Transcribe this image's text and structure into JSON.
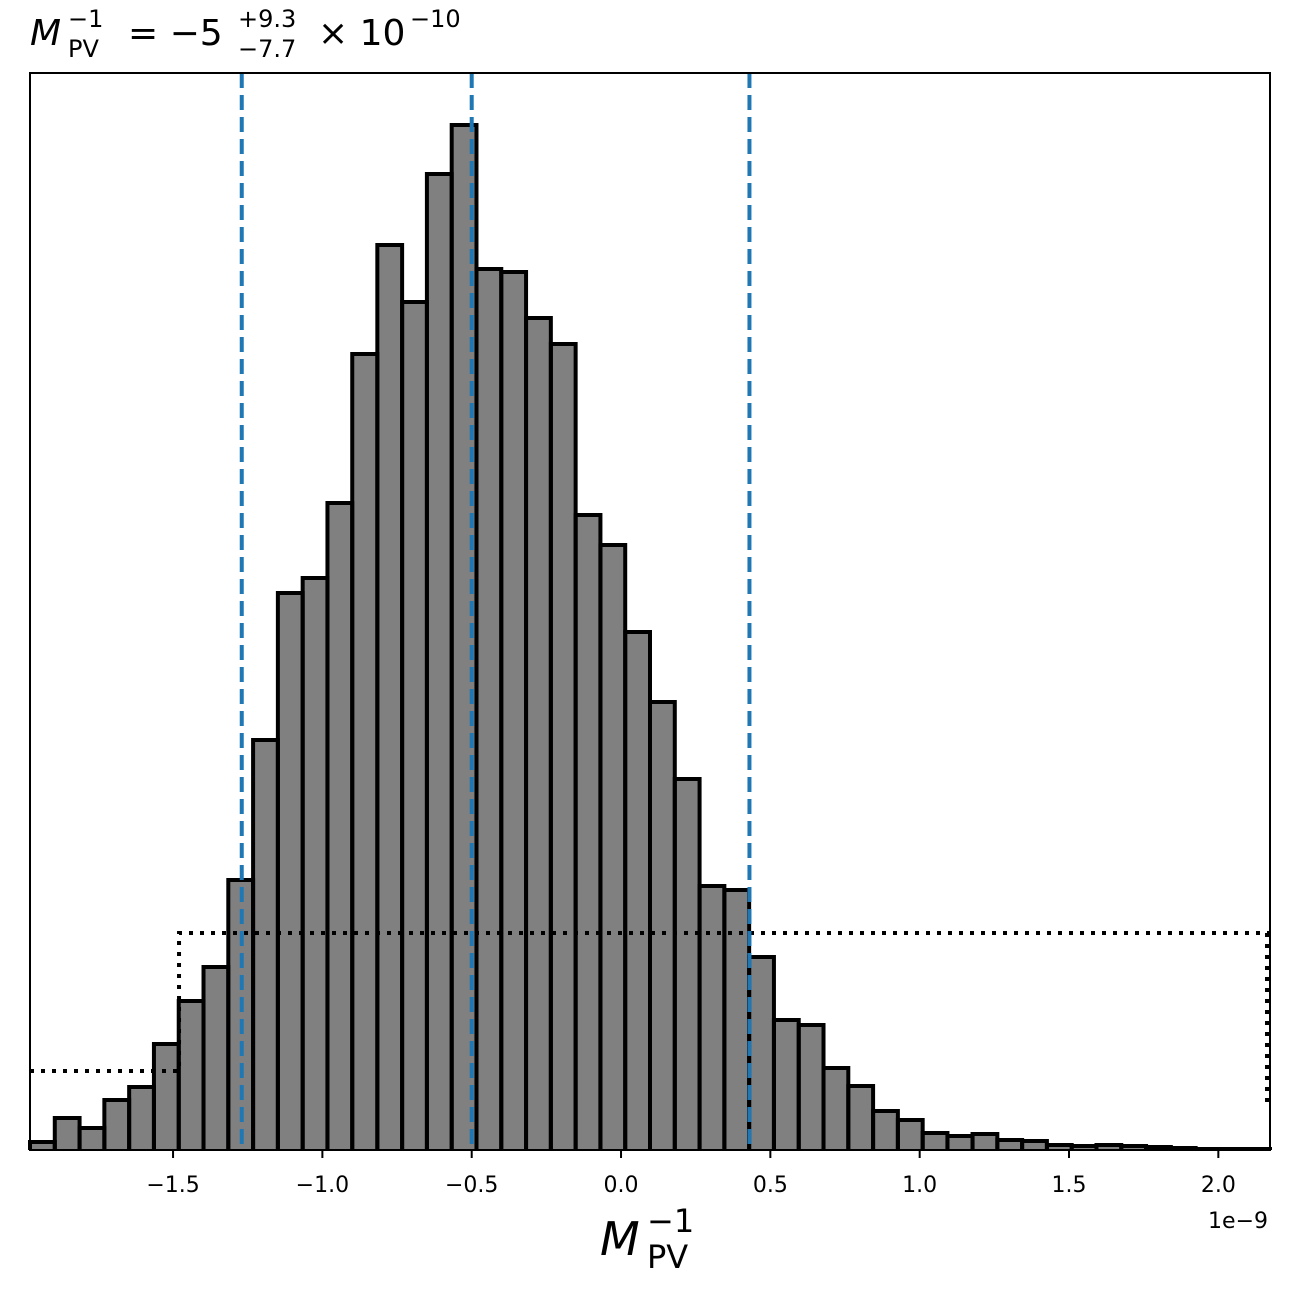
{
  "chart_data": {
    "type": "histogram",
    "title": {
      "symbol": "M",
      "sup": "−1",
      "sub": "PV",
      "equals": "= −5",
      "upper": "+9.3",
      "lower": "−7.7",
      "times": "× 10",
      "exponent": "−10"
    },
    "x_label": {
      "symbol": "M",
      "sup": "−1",
      "sub": "PV"
    },
    "offset_text": "1e−9",
    "bins": [
      -1.979,
      -1.896,
      -1.813,
      -1.73,
      -1.647,
      -1.564,
      -1.481,
      -1.398,
      -1.315,
      -1.232,
      -1.149,
      -1.066,
      -0.983,
      -0.9,
      -0.816,
      -0.733,
      -0.65,
      -0.567,
      -0.484,
      -0.401,
      -0.318,
      -0.235,
      -0.152,
      -0.069,
      0.014,
      0.097,
      0.18,
      0.263,
      0.346,
      0.429,
      0.512,
      0.595,
      0.678,
      0.761,
      0.844,
      0.927,
      1.01,
      1.093,
      1.177,
      1.26,
      1.343,
      1.426,
      1.509,
      1.592,
      1.675,
      1.758,
      1.841,
      1.924,
      2.007,
      2.09,
      2.173
    ],
    "values": [
      0.8,
      3.2,
      2.2,
      5.0,
      6.3,
      10.6,
      14.9,
      18.3,
      27.0,
      41.0,
      55.7,
      57.2,
      64.7,
      79.6,
      90.5,
      84.8,
      97.6,
      102.5,
      88.1,
      87.8,
      83.2,
      80.6,
      63.5,
      60.5,
      51.8,
      44.8,
      37.1,
      26.4,
      26.0,
      19.3,
      13.0,
      12.5,
      8.2,
      6.4,
      3.9,
      3.0,
      1.7,
      1.4,
      1.6,
      1.0,
      0.9,
      0.5,
      0.4,
      0.5,
      0.4,
      0.3,
      0.2,
      0.1,
      0.1,
      0.1
    ],
    "color": "#808080",
    "edge_color": "#000000",
    "vlines": {
      "values": [
        -1.27,
        -0.5,
        0.43
      ],
      "color": "#1f77b4"
    },
    "prior": {
      "x": [
        -1.979,
        -1.48,
        -1.48,
        2.163,
        2.163
      ],
      "values": [
        7.9,
        7.9,
        21.7,
        21.7,
        4.5
      ],
      "color": "#000000"
    },
    "xlim": [
      -1.979,
      2.173
    ],
    "ylim": [
      0,
      107.7
    ],
    "xticks": [
      {
        "value": -1.5,
        "label": "−1.5"
      },
      {
        "value": -1.0,
        "label": "−1.0"
      },
      {
        "value": -0.5,
        "label": "−0.5"
      },
      {
        "value": 0.0,
        "label": "0.0"
      },
      0.5,
      {
        "value": 1.0,
        "label": "1.0"
      },
      1.5,
      {
        "value": 2.0,
        "label": "2.0"
      }
    ]
  }
}
